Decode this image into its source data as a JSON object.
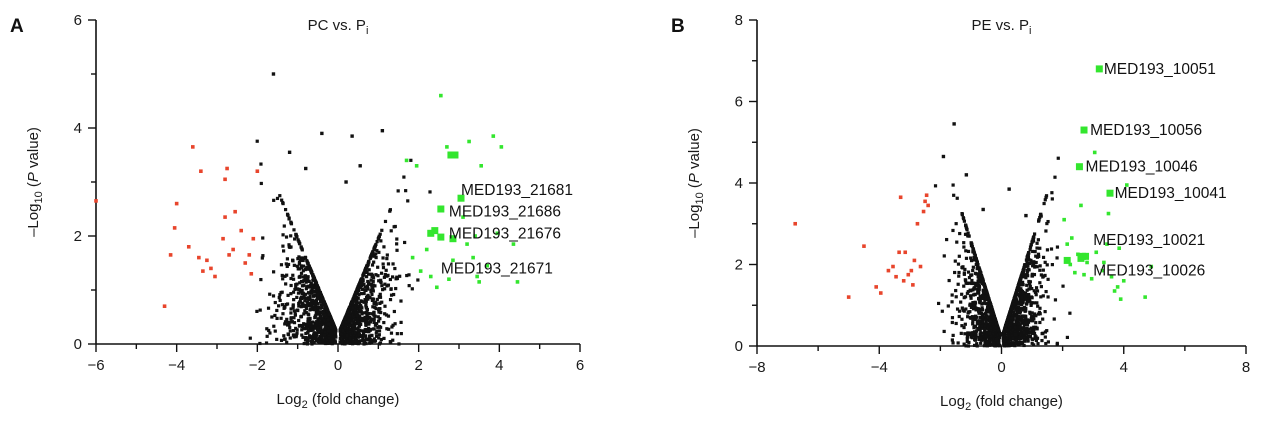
{
  "chart_data": [
    {
      "type": "scatter",
      "panel_label": "A",
      "title_main": "PC vs. P",
      "title_sub": "i",
      "xlabel_pre": "Log",
      "xlabel_sub": "2",
      "xlabel_post": " (fold change)",
      "ylabel_pre": "–Log",
      "ylabel_sub": "10",
      "ylabel_mid": " (",
      "ylabel_ital": "P",
      "ylabel_post": " value)",
      "xlim": [
        -6,
        6
      ],
      "ylim": [
        0,
        6
      ],
      "xticks": [
        -6,
        -4,
        -2,
        0,
        2,
        4,
        6
      ],
      "yticks": [
        0,
        2,
        4,
        6
      ],
      "xminor": [
        -5,
        -3,
        -1,
        1,
        3,
        5
      ],
      "yminor": [
        1,
        3,
        5
      ],
      "colors": {
        "down": "#e8452c",
        "up": "#33e62e",
        "ns": "#111111"
      },
      "down": [
        [
          -6.0,
          2.65
        ],
        [
          -4.3,
          0.7
        ],
        [
          -4.15,
          1.65
        ],
        [
          -4.05,
          2.15
        ],
        [
          -4.0,
          2.6
        ],
        [
          -3.7,
          1.8
        ],
        [
          -3.6,
          3.65
        ],
        [
          -3.45,
          1.6
        ],
        [
          -3.4,
          3.2
        ],
        [
          -3.35,
          1.35
        ],
        [
          -3.25,
          1.55
        ],
        [
          -3.15,
          1.4
        ],
        [
          -3.05,
          1.25
        ],
        [
          -2.85,
          1.95
        ],
        [
          -2.8,
          2.35
        ],
        [
          -2.8,
          3.05
        ],
        [
          -2.75,
          3.25
        ],
        [
          -2.7,
          1.65
        ],
        [
          -2.6,
          1.75
        ],
        [
          -2.55,
          2.45
        ],
        [
          -2.4,
          2.1
        ],
        [
          -2.3,
          1.5
        ],
        [
          -2.2,
          1.65
        ],
        [
          -2.15,
          1.3
        ],
        [
          -2.0,
          3.2
        ],
        [
          -2.1,
          1.95
        ]
      ],
      "up": [
        [
          1.7,
          3.4
        ],
        [
          1.85,
          1.6
        ],
        [
          1.95,
          3.3
        ],
        [
          2.05,
          1.35
        ],
        [
          2.2,
          1.75
        ],
        [
          2.3,
          1.25
        ],
        [
          2.45,
          1.05
        ],
        [
          2.55,
          4.6
        ],
        [
          2.7,
          3.65
        ],
        [
          2.75,
          1.2
        ],
        [
          2.85,
          1.55
        ],
        [
          3.1,
          2.35
        ],
        [
          3.2,
          1.85
        ],
        [
          3.25,
          3.75
        ],
        [
          3.35,
          1.6
        ],
        [
          3.4,
          2.0
        ],
        [
          3.45,
          1.25
        ],
        [
          3.5,
          1.15
        ],
        [
          3.55,
          3.3
        ],
        [
          3.7,
          1.45
        ],
        [
          3.85,
          3.85
        ],
        [
          3.95,
          2.05
        ],
        [
          4.05,
          3.65
        ],
        [
          4.35,
          1.85
        ],
        [
          4.45,
          1.15
        ]
      ],
      "highlighted": [
        [
          2.8,
          3.5
        ],
        [
          2.9,
          3.5
        ],
        [
          3.05,
          2.7
        ],
        [
          2.55,
          2.5
        ],
        [
          2.4,
          2.1
        ],
        [
          2.3,
          2.05
        ],
        [
          2.55,
          1.98
        ],
        [
          2.85,
          1.95
        ]
      ],
      "special": [
        [
          -1.6,
          5.0
        ],
        [
          -1.2,
          3.55
        ],
        [
          -0.4,
          3.9
        ],
        [
          0.35,
          3.85
        ],
        [
          0.55,
          3.3
        ],
        [
          1.1,
          3.95
        ],
        [
          -0.8,
          3.25
        ],
        [
          0.2,
          3.0
        ]
      ],
      "annotations": [
        {
          "text": "MED193_21681",
          "x": 3.05,
          "y": 2.85
        },
        {
          "text": "MED193_21686",
          "x": 2.75,
          "y": 2.45
        },
        {
          "text": "MED193_21676",
          "x": 2.75,
          "y": 2.05
        },
        {
          "text": "MED193_21671",
          "x": 2.55,
          "y": 1.4
        }
      ]
    },
    {
      "type": "scatter",
      "panel_label": "B",
      "title_main": "PE vs. P",
      "title_sub": "i",
      "xlabel_pre": "Log",
      "xlabel_sub": "2",
      "xlabel_post": " (fold change)",
      "ylabel_pre": "–Log",
      "ylabel_sub": "10",
      "ylabel_mid": " (",
      "ylabel_ital": "P",
      "ylabel_post": " value)",
      "xlim": [
        -8,
        8
      ],
      "ylim": [
        0,
        8
      ],
      "xticks": [
        -8,
        -4,
        0,
        4,
        8
      ],
      "yticks": [
        0,
        2,
        4,
        6,
        8
      ],
      "xminor": [
        -6,
        -2,
        2,
        6
      ],
      "yminor": [
        1,
        3,
        5,
        7
      ],
      "colors": {
        "down": "#e8452c",
        "up": "#33e62e",
        "ns": "#111111"
      },
      "down": [
        [
          -6.75,
          3.0
        ],
        [
          -5.0,
          1.2
        ],
        [
          -4.5,
          2.45
        ],
        [
          -4.1,
          1.45
        ],
        [
          -3.95,
          1.3
        ],
        [
          -3.7,
          1.85
        ],
        [
          -3.55,
          1.95
        ],
        [
          -3.45,
          1.7
        ],
        [
          -3.35,
          2.3
        ],
        [
          -3.3,
          3.65
        ],
        [
          -3.2,
          1.6
        ],
        [
          -3.15,
          2.3
        ],
        [
          -3.05,
          1.75
        ],
        [
          -2.95,
          1.85
        ],
        [
          -2.9,
          1.5
        ],
        [
          -2.85,
          2.1
        ],
        [
          -2.75,
          3.0
        ],
        [
          -2.65,
          1.95
        ],
        [
          -2.55,
          3.3
        ],
        [
          -2.5,
          3.55
        ],
        [
          -2.45,
          3.7
        ],
        [
          -2.4,
          3.45
        ]
      ],
      "up": [
        [
          2.05,
          3.1
        ],
        [
          2.15,
          2.5
        ],
        [
          2.25,
          2.0
        ],
        [
          2.3,
          2.65
        ],
        [
          2.4,
          1.8
        ],
        [
          2.5,
          2.25
        ],
        [
          2.6,
          3.45
        ],
        [
          2.7,
          1.75
        ],
        [
          2.8,
          2.05
        ],
        [
          2.95,
          1.65
        ],
        [
          3.05,
          4.75
        ],
        [
          3.1,
          2.3
        ],
        [
          3.3,
          1.85
        ],
        [
          3.35,
          2.05
        ],
        [
          3.45,
          2.5
        ],
        [
          3.5,
          3.25
        ],
        [
          3.6,
          1.7
        ],
        [
          3.7,
          1.35
        ],
        [
          3.8,
          1.45
        ],
        [
          3.85,
          2.4
        ],
        [
          3.9,
          1.15
        ],
        [
          4.0,
          1.6
        ],
        [
          4.1,
          3.95
        ],
        [
          4.7,
          1.2
        ],
        [
          4.9,
          1.95
        ]
      ],
      "highlighted": [
        [
          3.2,
          6.8
        ],
        [
          2.7,
          5.3
        ],
        [
          2.55,
          4.4
        ],
        [
          3.55,
          3.75
        ],
        [
          2.75,
          2.2
        ],
        [
          2.6,
          2.15
        ],
        [
          2.65,
          2.2
        ],
        [
          2.15,
          2.1
        ]
      ],
      "special": [
        [
          -1.55,
          5.45
        ],
        [
          -1.9,
          4.65
        ],
        [
          -1.15,
          4.2
        ],
        [
          0.25,
          3.85
        ],
        [
          -0.6,
          3.35
        ],
        [
          0.8,
          3.2
        ]
      ],
      "annotations": [
        {
          "text": "MED193_10051",
          "x": 3.35,
          "y": 6.8
        },
        {
          "text": "MED193_10056",
          "x": 2.9,
          "y": 5.3
        },
        {
          "text": "MED193_10046",
          "x": 2.75,
          "y": 4.4
        },
        {
          "text": "MED193_10041",
          "x": 3.7,
          "y": 3.75
        },
        {
          "text": "MED193_10021",
          "x": 3.0,
          "y": 2.6
        },
        {
          "text": "MED193_10026",
          "x": 3.0,
          "y": 1.85
        }
      ]
    }
  ]
}
